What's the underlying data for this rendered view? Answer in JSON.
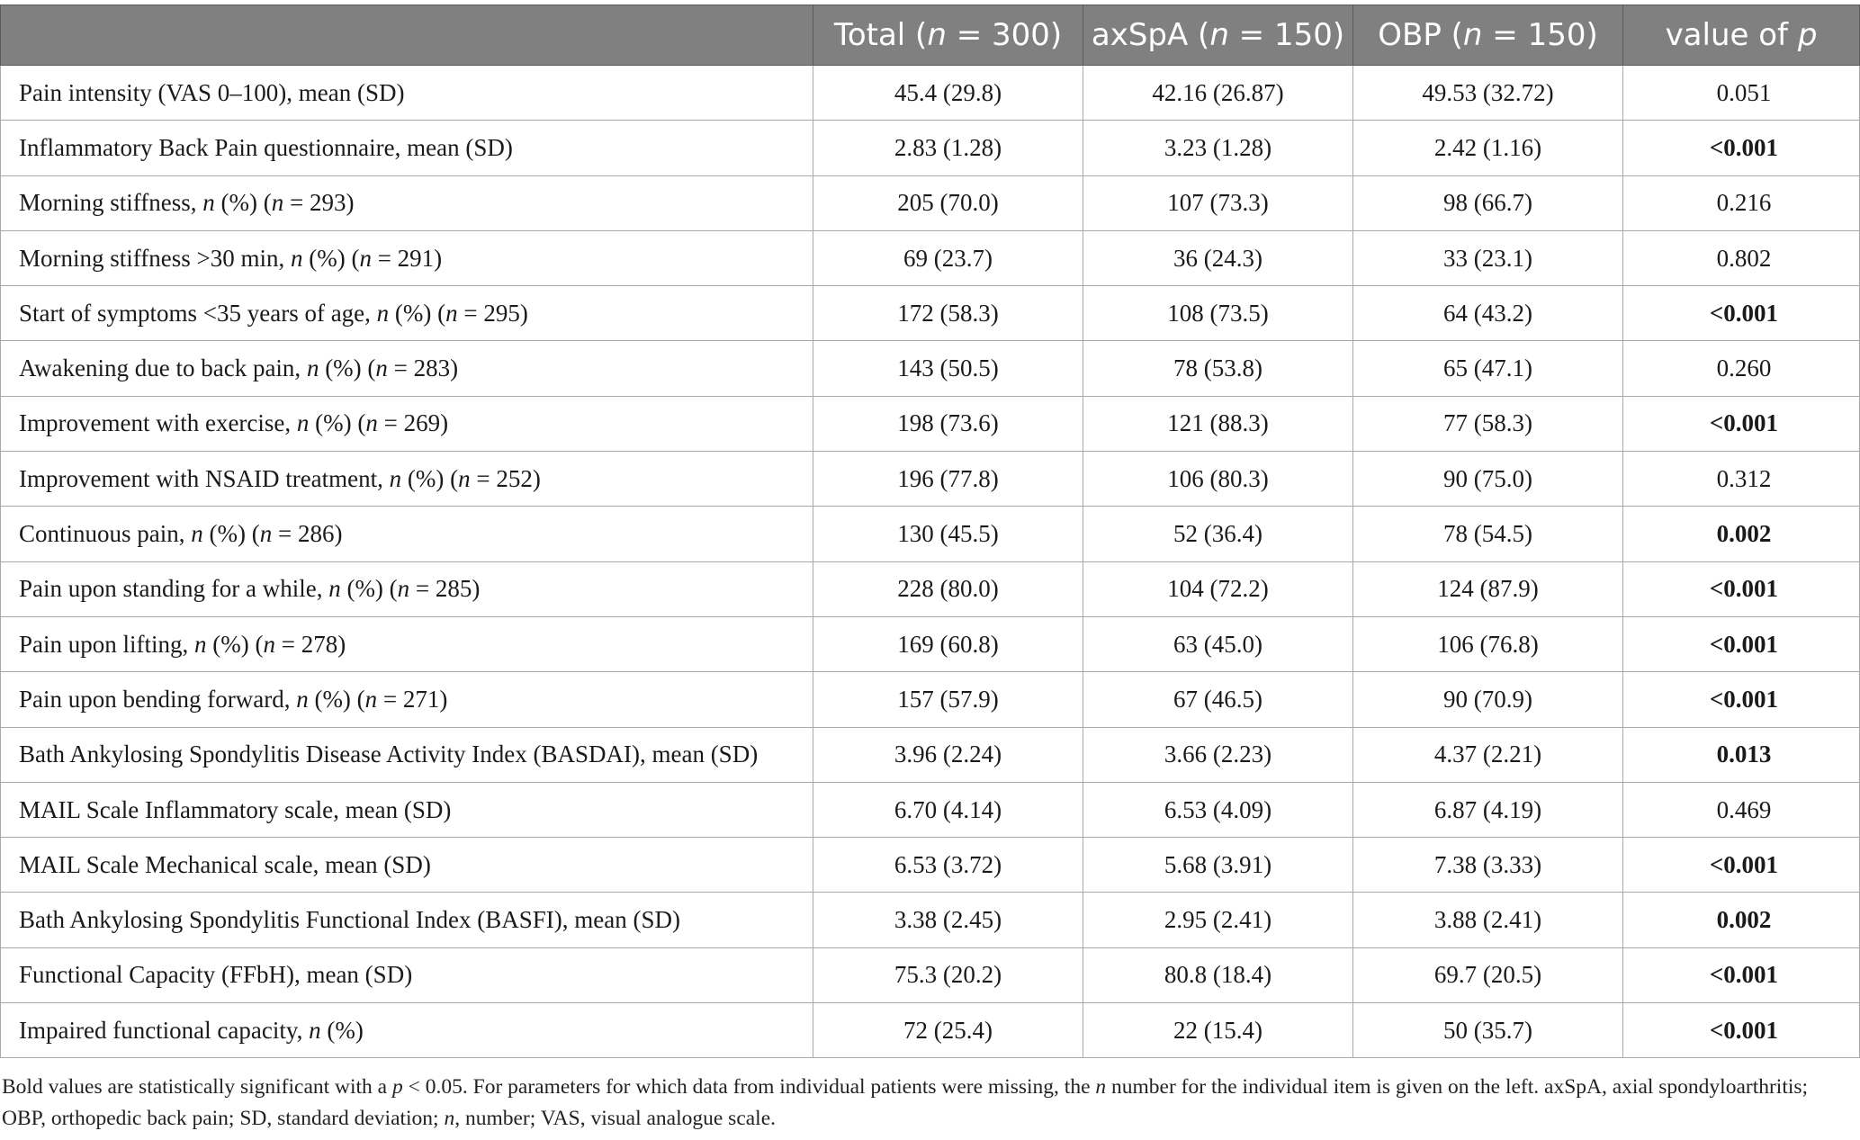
{
  "table": {
    "headers": [
      "",
      "Total (n = 300)",
      "axSpA (n = 150)",
      "OBP (n = 150)",
      "value of p"
    ],
    "header_parts": [
      {
        "pre": "",
        "it": "",
        "post": ""
      },
      {
        "pre": "Total (",
        "it": "n",
        "post": " = 300)"
      },
      {
        "pre": "axSpA (",
        "it": "n",
        "post": " = 150)"
      },
      {
        "pre": "OBP (",
        "it": "n",
        "post": " = 150)"
      },
      {
        "pre": "value of ",
        "it": "p",
        "post": ""
      }
    ],
    "rows": [
      {
        "label": "Pain intensity (VAS 0–100), mean (SD)",
        "label_parts": [
          {
            "t": "Pain intensity (VAS 0–100), mean (SD)",
            "i": false
          }
        ],
        "total": "45.4 (29.8)",
        "axspa": "42.16 (26.87)",
        "obp": "49.53 (32.72)",
        "p": "0.051",
        "significant": false
      },
      {
        "label": "Inflammatory Back Pain questionnaire, mean (SD)",
        "label_parts": [
          {
            "t": "Inflammatory Back Pain questionnaire, mean (SD)",
            "i": false
          }
        ],
        "total": "2.83 (1.28)",
        "axspa": "3.23 (1.28)",
        "obp": "2.42 (1.16)",
        "p": "<0.001",
        "significant": true
      },
      {
        "label": "Morning stiffness, n (%) (n = 293)",
        "label_parts": [
          {
            "t": "Morning stiffness, ",
            "i": false
          },
          {
            "t": "n",
            "i": true
          },
          {
            "t": " (%) (",
            "i": false
          },
          {
            "t": "n",
            "i": true
          },
          {
            "t": " = 293)",
            "i": false
          }
        ],
        "total": "205 (70.0)",
        "axspa": "107 (73.3)",
        "obp": "98 (66.7)",
        "p": "0.216",
        "significant": false
      },
      {
        "label": "Morning stiffness >30 min, n (%) (n = 291)",
        "label_parts": [
          {
            "t": "Morning stiffness >30 min, ",
            "i": false
          },
          {
            "t": "n",
            "i": true
          },
          {
            "t": " (%) (",
            "i": false
          },
          {
            "t": "n",
            "i": true
          },
          {
            "t": " = 291)",
            "i": false
          }
        ],
        "total": "69 (23.7)",
        "axspa": "36 (24.3)",
        "obp": "33 (23.1)",
        "p": "0.802",
        "significant": false
      },
      {
        "label": "Start of symptoms <35 years of age, n (%) (n = 295)",
        "label_parts": [
          {
            "t": "Start of symptoms <35 years of age, ",
            "i": false
          },
          {
            "t": "n",
            "i": true
          },
          {
            "t": " (%) (",
            "i": false
          },
          {
            "t": "n",
            "i": true
          },
          {
            "t": " = 295)",
            "i": false
          }
        ],
        "total": "172 (58.3)",
        "axspa": "108 (73.5)",
        "obp": "64 (43.2)",
        "p": "<0.001",
        "significant": true
      },
      {
        "label": "Awakening due to back pain, n (%) (n = 283)",
        "label_parts": [
          {
            "t": "Awakening due to back pain, ",
            "i": false
          },
          {
            "t": "n",
            "i": true
          },
          {
            "t": " (%) (",
            "i": false
          },
          {
            "t": "n",
            "i": true
          },
          {
            "t": " = 283)",
            "i": false
          }
        ],
        "total": "143 (50.5)",
        "axspa": "78 (53.8)",
        "obp": "65 (47.1)",
        "p": "0.260",
        "significant": false
      },
      {
        "label": "Improvement with exercise, n (%) (n = 269)",
        "label_parts": [
          {
            "t": "Improvement with exercise, ",
            "i": false
          },
          {
            "t": "n",
            "i": true
          },
          {
            "t": " (%) (",
            "i": false
          },
          {
            "t": "n",
            "i": true
          },
          {
            "t": " = 269)",
            "i": false
          }
        ],
        "total": "198 (73.6)",
        "axspa": "121 (88.3)",
        "obp": "77 (58.3)",
        "p": "<0.001",
        "significant": true
      },
      {
        "label": "Improvement with NSAID treatment, n (%) (n = 252)",
        "label_parts": [
          {
            "t": "Improvement with NSAID treatment, ",
            "i": false
          },
          {
            "t": "n",
            "i": true
          },
          {
            "t": " (%) (",
            "i": false
          },
          {
            "t": "n",
            "i": true
          },
          {
            "t": " = 252)",
            "i": false
          }
        ],
        "total": "196 (77.8)",
        "axspa": "106 (80.3)",
        "obp": "90 (75.0)",
        "p": "0.312",
        "significant": false
      },
      {
        "label": "Continuous pain, n (%) (n = 286)",
        "label_parts": [
          {
            "t": "Continuous pain, ",
            "i": false
          },
          {
            "t": "n",
            "i": true
          },
          {
            "t": " (%) (",
            "i": false
          },
          {
            "t": "n",
            "i": true
          },
          {
            "t": " = 286)",
            "i": false
          }
        ],
        "total": "130 (45.5)",
        "axspa": "52 (36.4)",
        "obp": "78 (54.5)",
        "p": "0.002",
        "significant": true
      },
      {
        "label": "Pain upon standing for a while, n (%) (n = 285)",
        "label_parts": [
          {
            "t": "Pain upon standing for a while, ",
            "i": false
          },
          {
            "t": "n",
            "i": true
          },
          {
            "t": " (%) (",
            "i": false
          },
          {
            "t": "n",
            "i": true
          },
          {
            "t": " = 285)",
            "i": false
          }
        ],
        "total": "228 (80.0)",
        "axspa": "104 (72.2)",
        "obp": "124 (87.9)",
        "p": "<0.001",
        "significant": true
      },
      {
        "label": "Pain upon lifting, n (%) (n = 278)",
        "label_parts": [
          {
            "t": "Pain upon lifting, ",
            "i": false
          },
          {
            "t": "n",
            "i": true
          },
          {
            "t": " (%) (",
            "i": false
          },
          {
            "t": "n",
            "i": true
          },
          {
            "t": " = 278)",
            "i": false
          }
        ],
        "total": "169 (60.8)",
        "axspa": "63 (45.0)",
        "obp": "106 (76.8)",
        "p": "<0.001",
        "significant": true
      },
      {
        "label": "Pain upon bending forward, n (%) (n = 271)",
        "label_parts": [
          {
            "t": "Pain upon bending forward, ",
            "i": false
          },
          {
            "t": "n",
            "i": true
          },
          {
            "t": " (%) (",
            "i": false
          },
          {
            "t": "n",
            "i": true
          },
          {
            "t": " = 271)",
            "i": false
          }
        ],
        "total": "157 (57.9)",
        "axspa": "67 (46.5)",
        "obp": "90 (70.9)",
        "p": "<0.001",
        "significant": true
      },
      {
        "label": "Bath Ankylosing Spondylitis Disease Activity Index (BASDAI), mean (SD)",
        "label_parts": [
          {
            "t": "Bath Ankylosing Spondylitis Disease Activity Index (BASDAI), mean (SD)",
            "i": false
          }
        ],
        "total": "3.96 (2.24)",
        "axspa": "3.66 (2.23)",
        "obp": "4.37 (2.21)",
        "p": "0.013",
        "significant": true
      },
      {
        "label": "MAIL Scale Inflammatory scale, mean (SD)",
        "label_parts": [
          {
            "t": "MAIL Scale Inflammatory scale, mean (SD)",
            "i": false
          }
        ],
        "total": "6.70 (4.14)",
        "axspa": "6.53 (4.09)",
        "obp": "6.87 (4.19)",
        "p": "0.469",
        "significant": false
      },
      {
        "label": "MAIL Scale Mechanical scale, mean (SD)",
        "label_parts": [
          {
            "t": "MAIL Scale Mechanical scale, mean (SD)",
            "i": false
          }
        ],
        "total": "6.53 (3.72)",
        "axspa": "5.68 (3.91)",
        "obp": "7.38 (3.33)",
        "p": "<0.001",
        "significant": true
      },
      {
        "label": "Bath Ankylosing Spondylitis Functional Index (BASFI), mean (SD)",
        "label_parts": [
          {
            "t": "Bath Ankylosing Spondylitis Functional Index (BASFI), mean (SD)",
            "i": false
          }
        ],
        "total": "3.38 (2.45)",
        "axspa": "2.95 (2.41)",
        "obp": "3.88 (2.41)",
        "p": "0.002",
        "significant": true
      },
      {
        "label": "Functional Capacity (FFbH), mean (SD)",
        "label_parts": [
          {
            "t": "Functional Capacity (FFbH), mean (SD)",
            "i": false
          }
        ],
        "total": "75.3 (20.2)",
        "axspa": "80.8 (18.4)",
        "obp": "69.7 (20.5)",
        "p": "<0.001",
        "significant": true
      },
      {
        "label": "Impaired functional capacity, n (%)",
        "label_parts": [
          {
            "t": "Impaired functional capacity, ",
            "i": false
          },
          {
            "t": "n",
            "i": true
          },
          {
            "t": " (%)",
            "i": false
          }
        ],
        "total": "72 (25.4)",
        "axspa": "22 (15.4)",
        "obp": "50 (35.7)",
        "p": "<0.001",
        "significant": true
      }
    ]
  },
  "footnote": "Bold values are statistically significant with a p < 0.05. For parameters for which data from individual patients were missing, the n number for the individual item is given on the left. axSpA, axial spondyloarthritis; OBP, orthopedic back pain; SD, standard deviation; n, number; VAS, visual analogue scale.",
  "footnote_parts": [
    {
      "t": "Bold values are statistically significant with a ",
      "i": false
    },
    {
      "t": "p",
      "i": true
    },
    {
      "t": " < 0.05. For parameters for which data from individual patients were missing, the ",
      "i": false
    },
    {
      "t": "n",
      "i": true
    },
    {
      "t": " number for the individual item is given on the left. axSpA, axial spondyloarthritis; OBP, orthopedic back pain; SD, standard deviation; ",
      "i": false
    },
    {
      "t": "n",
      "i": true
    },
    {
      "t": ", number; VAS, visual analogue scale.",
      "i": false
    }
  ],
  "colors": {
    "header_bg": "#808080",
    "header_text": "#ffffff",
    "grid": "#a8a8a8"
  }
}
